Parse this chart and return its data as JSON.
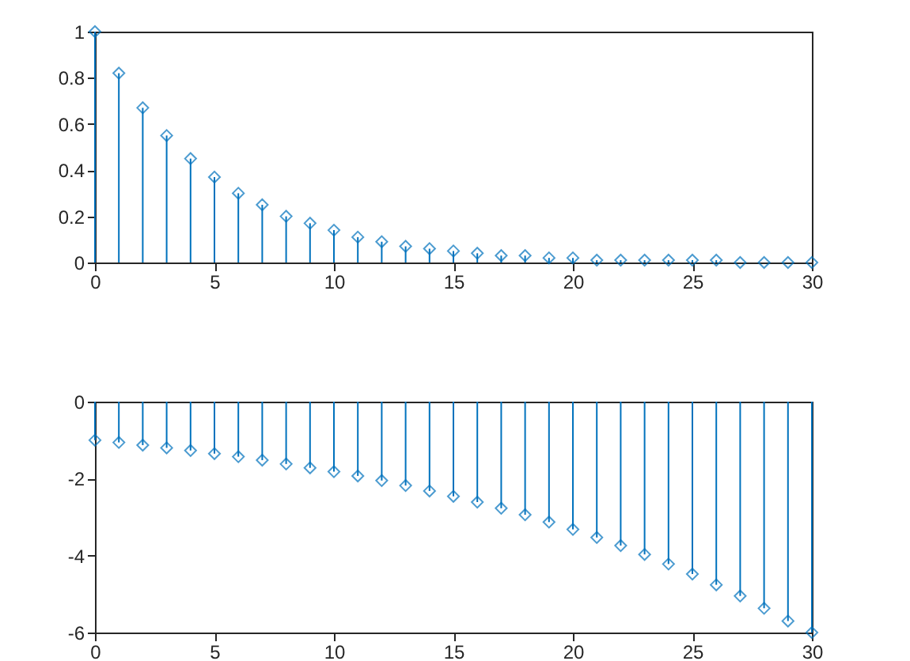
{
  "chart_data": [
    {
      "type": "lollipop",
      "x": [
        0,
        1,
        2,
        3,
        4,
        5,
        6,
        7,
        8,
        9,
        10,
        11,
        12,
        13,
        14,
        15,
        16,
        17,
        18,
        19,
        20,
        21,
        22,
        23,
        24,
        25,
        26,
        27,
        28,
        29,
        30
      ],
      "values": [
        1,
        0.82,
        0.67,
        0.55,
        0.45,
        0.37,
        0.3,
        0.25,
        0.2,
        0.17,
        0.14,
        0.11,
        0.09,
        0.07,
        0.06,
        0.05,
        0.04,
        0.03,
        0.03,
        0.02,
        0.02,
        0.01,
        0.01,
        0.01,
        0.01,
        0.01,
        0.01,
        0,
        0,
        0,
        0
      ],
      "color": "#0072bd",
      "xlim": [
        0,
        30
      ],
      "xticks": [
        0,
        5,
        10,
        15,
        20,
        25,
        30
      ],
      "ylim": [
        0,
        1
      ],
      "yticks": [
        0,
        0.2,
        0.4,
        0.6,
        0.8,
        1
      ],
      "marker": "diamond",
      "grid": false
    },
    {
      "type": "lollipop",
      "x": [
        0,
        1,
        2,
        3,
        4,
        5,
        6,
        7,
        8,
        9,
        10,
        11,
        12,
        13,
        14,
        15,
        16,
        17,
        18,
        19,
        20,
        21,
        22,
        23,
        24,
        25,
        26,
        27,
        28,
        29,
        30
      ],
      "values": [
        -1,
        -1.06,
        -1.13,
        -1.2,
        -1.27,
        -1.35,
        -1.43,
        -1.52,
        -1.62,
        -1.72,
        -1.82,
        -1.93,
        -2.05,
        -2.18,
        -2.32,
        -2.46,
        -2.61,
        -2.77,
        -2.94,
        -3.13,
        -3.32,
        -3.53,
        -3.74,
        -3.97,
        -4.22,
        -4.48,
        -4.76,
        -5.05,
        -5.37,
        -5.7,
        -6
      ],
      "color": "#0072bd",
      "xlim": [
        0,
        30
      ],
      "xticks": [
        0,
        5,
        10,
        15,
        20,
        25,
        30
      ],
      "ylim": [
        -6,
        0
      ],
      "yticks": [
        -6,
        -4,
        -2,
        0
      ],
      "marker": "diamond",
      "grid": false
    }
  ]
}
